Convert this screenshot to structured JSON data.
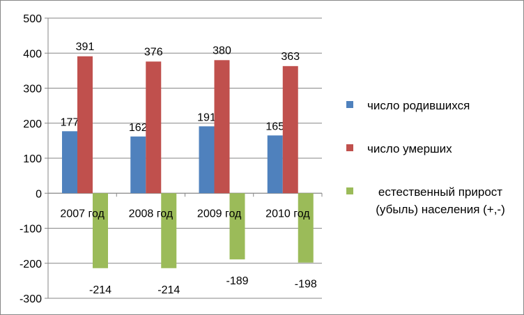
{
  "chart_data": {
    "type": "bar",
    "categories": [
      "2007 год",
      "2008 год",
      "2009 год",
      "2010 год"
    ],
    "series": [
      {
        "name": "число родившихся",
        "values": [
          177,
          162,
          191,
          165
        ],
        "color": "#4F81BD"
      },
      {
        "name": "число умерших",
        "values": [
          391,
          376,
          380,
          363
        ],
        "color": "#C0504D"
      },
      {
        "name": "естественный прирост (убыль) населения (+,-)",
        "values": [
          -214,
          -214,
          -189,
          -198
        ],
        "color": "#9BBB59"
      }
    ],
    "data_labels": {
      "series_0": [
        "177",
        "162",
        "191",
        "165"
      ],
      "series_1": [
        "391",
        "376",
        "380",
        "363"
      ],
      "series_2": [
        "-214",
        "-214",
        "-189",
        "-198"
      ]
    },
    "y_ticks": [
      "500",
      "400",
      "300",
      "200",
      "100",
      "0",
      "-100",
      "-200",
      "-300"
    ],
    "ylim": [
      -300,
      500
    ],
    "grid": true,
    "legend_position": "right"
  },
  "legend": {
    "items": [
      {
        "label": "число родившихся",
        "color": "#4F81BD"
      },
      {
        "label": "число умерших",
        "color": "#C0504D"
      },
      {
        "label": "естественный прирост (убыль) населения (+,-)",
        "color": "#9BBB59"
      }
    ]
  }
}
